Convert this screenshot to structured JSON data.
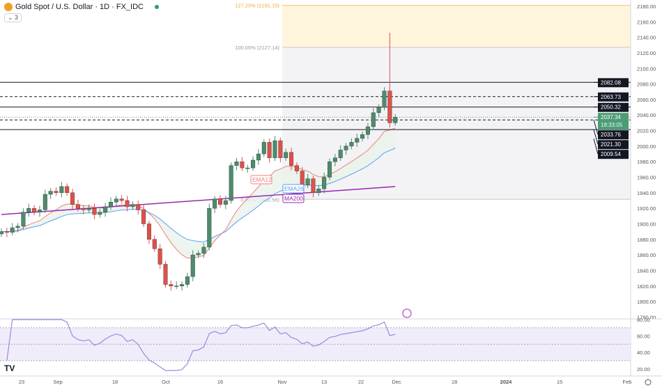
{
  "header": {
    "title": "Gold Spot / U.S. Dollar · 1D · FX_IDC",
    "collapse": "3"
  },
  "colors": {
    "up": "#4c8c6c",
    "down": "#e0504a",
    "ema12": "#f08080",
    "ema26": "#5b9cf6",
    "ma200": "#9c27b0",
    "rsi": "#9c88e0"
  },
  "chart_data": {
    "type": "candlestick",
    "ylim": [
      1780,
      2180
    ],
    "y_ticks": [
      1780,
      1800,
      1820,
      1840,
      1860,
      1880,
      1900,
      1920,
      1940,
      1960,
      1980,
      2000,
      2020,
      2040,
      2060,
      2080,
      2100,
      2120,
      2140,
      2160,
      2180
    ],
    "x_ticks": [
      "23",
      "Sep",
      "18",
      "Oct",
      "16",
      "Nov",
      "13",
      "22",
      "Dec",
      "18",
      "2024",
      "15",
      "Feb"
    ],
    "closes": [
      1890,
      1889,
      1895,
      1897,
      1915,
      1920,
      1915,
      1918,
      1938,
      1942,
      1940,
      1948,
      1940,
      1925,
      1920,
      1918,
      1920,
      1912,
      1915,
      1922,
      1928,
      1932,
      1930,
      1922,
      1925,
      1918,
      1900,
      1880,
      1868,
      1848,
      1822,
      1820,
      1820,
      1822,
      1832,
      1860,
      1862,
      1870,
      1920,
      1932,
      1925,
      1930,
      1975,
      1980,
      1972,
      1972,
      1982,
      1990,
      2005,
      1985,
      2007,
      1985,
      1992,
      1975,
      1968,
      1950,
      1958,
      1940,
      1945,
      1960,
      1980,
      1985,
      1995,
      2000,
      2005,
      2010,
      2015,
      2025,
      2043,
      2050,
      2071,
      2030,
      2037.34
    ],
    "spike_high": 2146,
    "indicators": {
      "ema12_label": "EMA12",
      "ema26_label": "EMA26",
      "ma200_label": "MA200"
    },
    "fib": {
      "levels": [
        {
          "label": "127.20% (2181.15)",
          "value": 2181.15
        },
        {
          "label": "100.00% (2127.14)",
          "value": 2127.14
        },
        {
          "label": "0.00% (1931.56)",
          "value": 1931.56
        }
      ]
    },
    "hlines": [
      {
        "value": 2082.08,
        "label": "2082.08",
        "style": "solid"
      },
      {
        "value": 2063.73,
        "label": "2063.73",
        "style": "dashed"
      },
      {
        "value": 2050.32,
        "label": "2050.32",
        "style": "solid"
      },
      {
        "value": 2033.76,
        "label": "2033.76",
        "style": "dashed"
      },
      {
        "value": 2021.3,
        "label": "2021.30",
        "style": "solid"
      }
    ],
    "price_tags": [
      {
        "label": "2009.54",
        "value": 2009.54
      }
    ],
    "last_price": {
      "label": "2037.34",
      "countdown": "18:33:05"
    },
    "rsi": {
      "ylim": [
        15,
        82
      ],
      "ticks": [
        "80.00",
        "60.00",
        "40.00",
        "20.00"
      ],
      "tick_values": [
        80,
        60,
        40,
        20
      ],
      "bands": [
        70,
        50,
        30
      ]
    }
  }
}
